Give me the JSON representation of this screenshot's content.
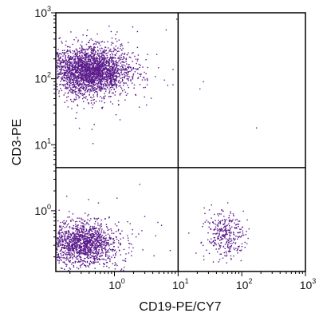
{
  "chart_data": {
    "type": "scatter",
    "title": "",
    "xlabel": "CD19-PE/CY7",
    "ylabel": "CD3-PE",
    "x_scale": "log",
    "y_scale": "log",
    "xlim": [
      0.12,
      1000
    ],
    "ylim": [
      0.12,
      1000
    ],
    "grid": false,
    "quadrant_gates": {
      "x": 10,
      "y": 4.5
    },
    "x_ticks": [
      {
        "value": 1,
        "base": "10",
        "exp": "0"
      },
      {
        "value": 10,
        "base": "10",
        "exp": "1"
      },
      {
        "value": 100,
        "base": "10",
        "exp": "2"
      },
      {
        "value": 1000,
        "base": "10",
        "exp": "3"
      }
    ],
    "y_ticks": [
      {
        "value": 1,
        "base": "10",
        "exp": "0"
      },
      {
        "value": 10,
        "base": "10",
        "exp": "1"
      },
      {
        "value": 100,
        "base": "10",
        "exp": "2"
      },
      {
        "value": 1000,
        "base": "10",
        "exp": "3"
      }
    ],
    "point_color": "#5a1a8a",
    "populations": [
      {
        "quadrant": "upper-left",
        "n": 2600,
        "x_center": 0.42,
        "y_center": 130,
        "x_spread_decades": 0.3,
        "y_spread_decades": 0.18
      },
      {
        "quadrant": "lower-left",
        "n": 1500,
        "x_center": 0.32,
        "y_center": 0.32,
        "x_spread_decades": 0.28,
        "y_spread_decades": 0.16
      },
      {
        "quadrant": "lower-right",
        "n": 320,
        "x_center": 55,
        "y_center": 0.42,
        "x_spread_decades": 0.14,
        "y_spread_decades": 0.17
      }
    ],
    "outliers": [
      {
        "x": 25,
        "y": 90
      },
      {
        "x": 22,
        "y": 70
      },
      {
        "x": 170,
        "y": 18
      },
      {
        "x": 9.5,
        "y": 800
      },
      {
        "x": 6.5,
        "y": 550
      },
      {
        "x": 3.2,
        "y": 40
      },
      {
        "x": 2.5,
        "y": 2.5
      },
      {
        "x": 7.5,
        "y": 0.25
      },
      {
        "x": 5.5,
        "y": 0.6
      }
    ]
  }
}
